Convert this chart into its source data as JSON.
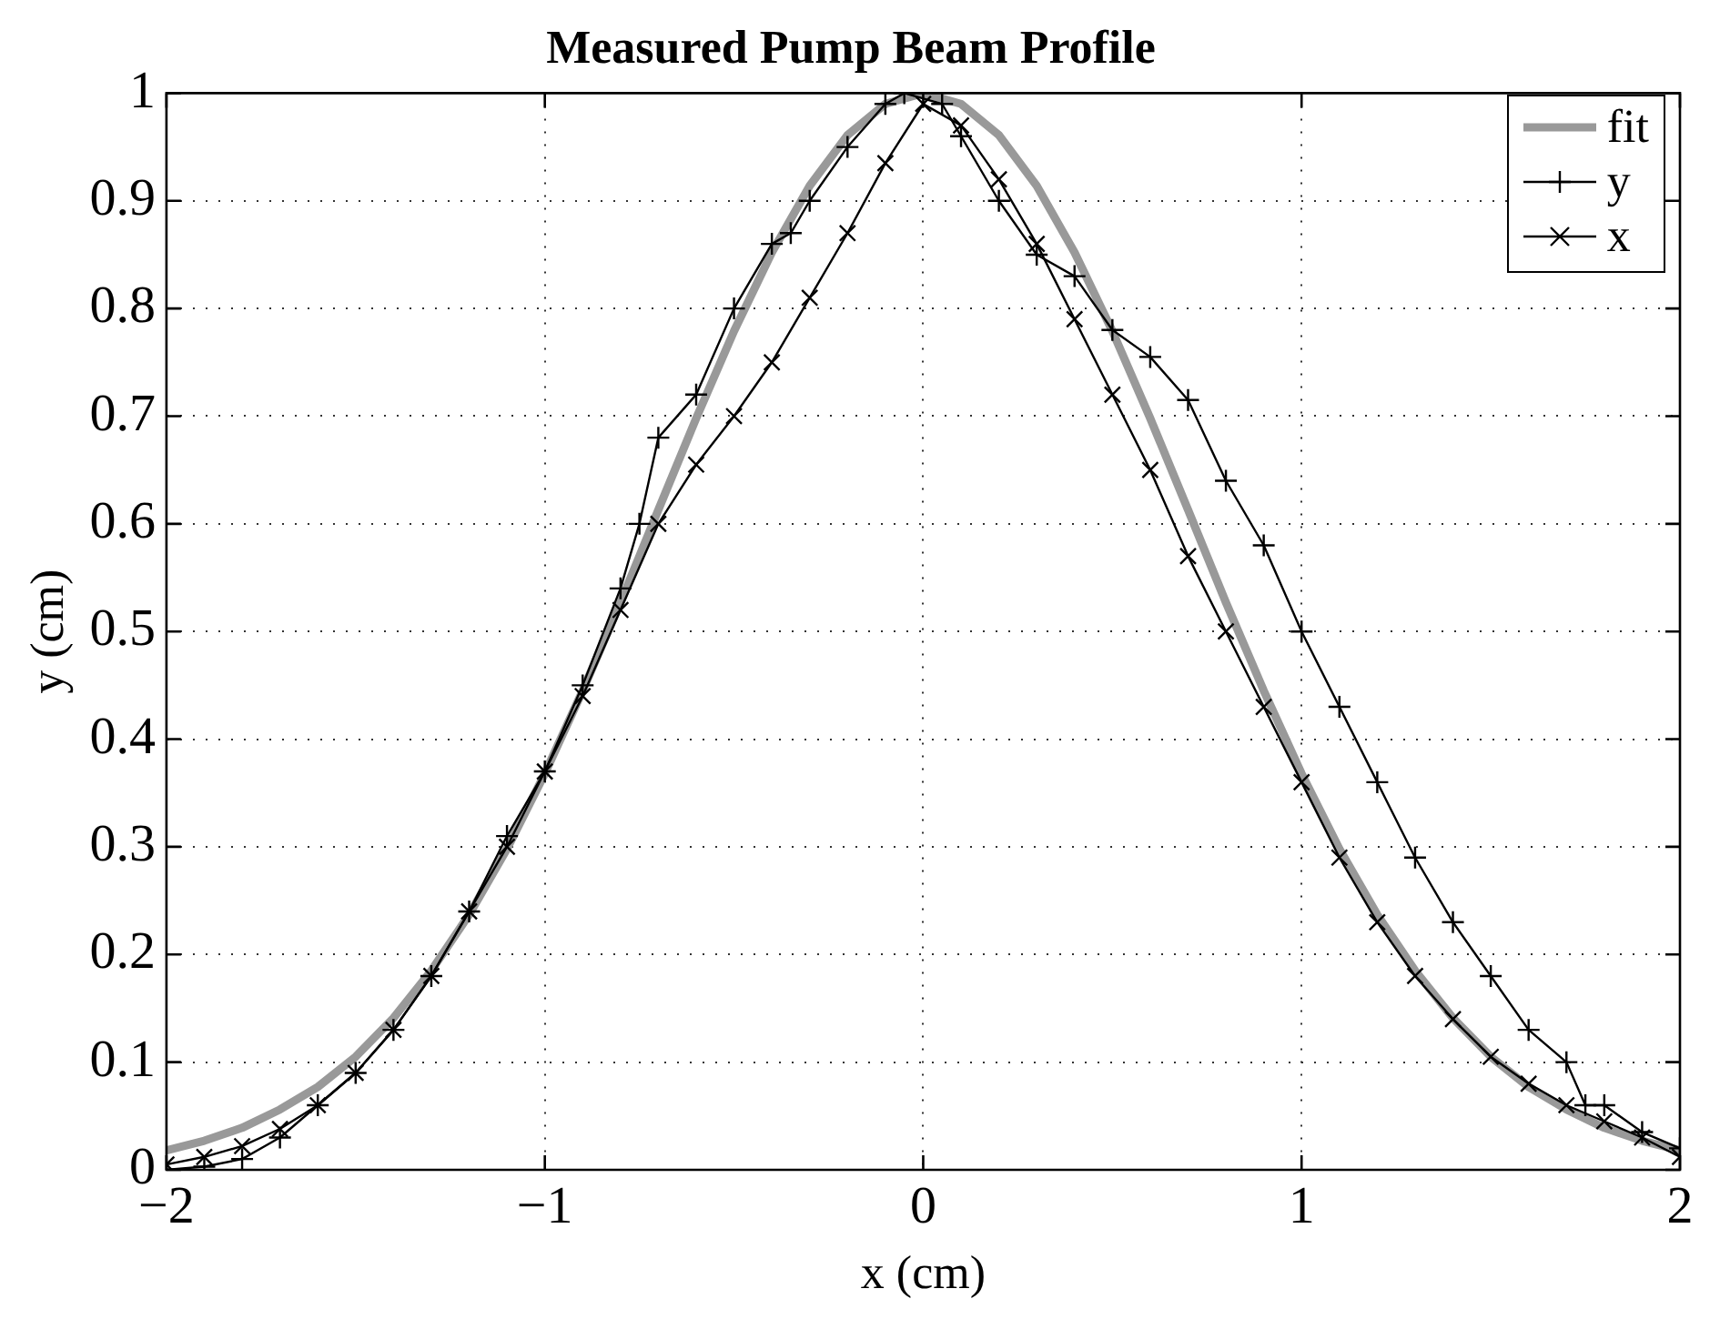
{
  "chart_data": {
    "type": "line",
    "title": "Measured Pump Beam Profile",
    "xlabel": "x (cm)",
    "ylabel": "y (cm)",
    "xlim": [
      -2,
      2
    ],
    "ylim": [
      0,
      1
    ],
    "xticks": [
      {
        "value": -2,
        "label": "−2"
      },
      {
        "value": -1,
        "label": "−1"
      },
      0,
      1,
      2
    ],
    "yticks": [
      0,
      0.1,
      0.2,
      0.3,
      0.4,
      0.5,
      0.6,
      0.7,
      0.8,
      0.9,
      1
    ],
    "grid": true,
    "legend": "top right",
    "series": [
      {
        "name": "fit",
        "color": "#999999",
        "marker": "none",
        "x": [
          -2,
          -1.9,
          -1.8,
          -1.7,
          -1.6,
          -1.5,
          -1.4,
          -1.3,
          -1.2,
          -1.1,
          -1,
          -0.9,
          -0.8,
          -0.7,
          -0.6,
          -0.5,
          -0.4,
          -0.3,
          -0.2,
          -0.1,
          0,
          0.1,
          0.2,
          0.3,
          0.4,
          0.5,
          0.6,
          0.7,
          0.8,
          0.9,
          1,
          1.1,
          1.2,
          1.3,
          1.4,
          1.5,
          1.6,
          1.7,
          1.8,
          1.9,
          2
        ],
        "values": [
          0.018,
          0.027,
          0.039,
          0.056,
          0.077,
          0.105,
          0.141,
          0.185,
          0.237,
          0.298,
          0.368,
          0.445,
          0.527,
          0.613,
          0.698,
          0.779,
          0.852,
          0.914,
          0.961,
          0.99,
          1,
          0.99,
          0.961,
          0.914,
          0.852,
          0.779,
          0.698,
          0.613,
          0.527,
          0.445,
          0.368,
          0.298,
          0.237,
          0.185,
          0.141,
          0.105,
          0.077,
          0.056,
          0.039,
          0.027,
          0.018
        ]
      },
      {
        "name": "y",
        "color": "#000000",
        "marker": "cross",
        "x": [
          -2,
          -1.9,
          -1.8,
          -1.7,
          -1.6,
          -1.5,
          -1.4,
          -1.3,
          -1.2,
          -1.1,
          -1,
          -0.9,
          -0.8,
          -0.75,
          -0.7,
          -0.6,
          -0.5,
          -0.4,
          -0.35,
          -0.3,
          -0.2,
          -0.1,
          -0.05,
          0.05,
          0.1,
          0.2,
          0.3,
          0.4,
          0.5,
          0.6,
          0.7,
          0.8,
          0.9,
          1,
          1.1,
          1.2,
          1.3,
          1.4,
          1.5,
          1.6,
          1.7,
          1.75,
          1.8,
          1.9,
          2
        ],
        "values": [
          0.0,
          0.003,
          0.01,
          0.03,
          0.06,
          0.09,
          0.13,
          0.18,
          0.24,
          0.31,
          0.37,
          0.45,
          0.54,
          0.6,
          0.68,
          0.72,
          0.8,
          0.86,
          0.87,
          0.9,
          0.95,
          0.99,
          1,
          0.99,
          0.96,
          0.9,
          0.85,
          0.83,
          0.78,
          0.755,
          0.715,
          0.64,
          0.58,
          0.5,
          0.43,
          0.36,
          0.29,
          0.23,
          0.18,
          0.13,
          0.1,
          0.06,
          0.06,
          0.035,
          0.02
        ]
      },
      {
        "name": "x",
        "color": "#000000",
        "marker": "x",
        "x": [
          -2,
          -1.9,
          -1.8,
          -1.7,
          -1.6,
          -1.5,
          -1.4,
          -1.3,
          -1.2,
          -1.1,
          -1,
          -0.9,
          -0.8,
          -0.7,
          -0.6,
          -0.5,
          -0.4,
          -0.3,
          -0.2,
          -0.1,
          0,
          0.1,
          0.2,
          0.3,
          0.4,
          0.5,
          0.6,
          0.7,
          0.8,
          0.9,
          1,
          1.1,
          1.2,
          1.3,
          1.4,
          1.5,
          1.6,
          1.7,
          1.8,
          1.9,
          2
        ],
        "values": [
          0.005,
          0.012,
          0.022,
          0.038,
          0.06,
          0.09,
          0.13,
          0.18,
          0.24,
          0.3,
          0.37,
          0.44,
          0.52,
          0.6,
          0.655,
          0.7,
          0.75,
          0.81,
          0.87,
          0.935,
          0.99,
          0.97,
          0.92,
          0.86,
          0.79,
          0.72,
          0.65,
          0.57,
          0.5,
          0.43,
          0.36,
          0.29,
          0.23,
          0.18,
          0.14,
          0.105,
          0.08,
          0.06,
          0.045,
          0.03,
          0.012
        ]
      }
    ]
  }
}
